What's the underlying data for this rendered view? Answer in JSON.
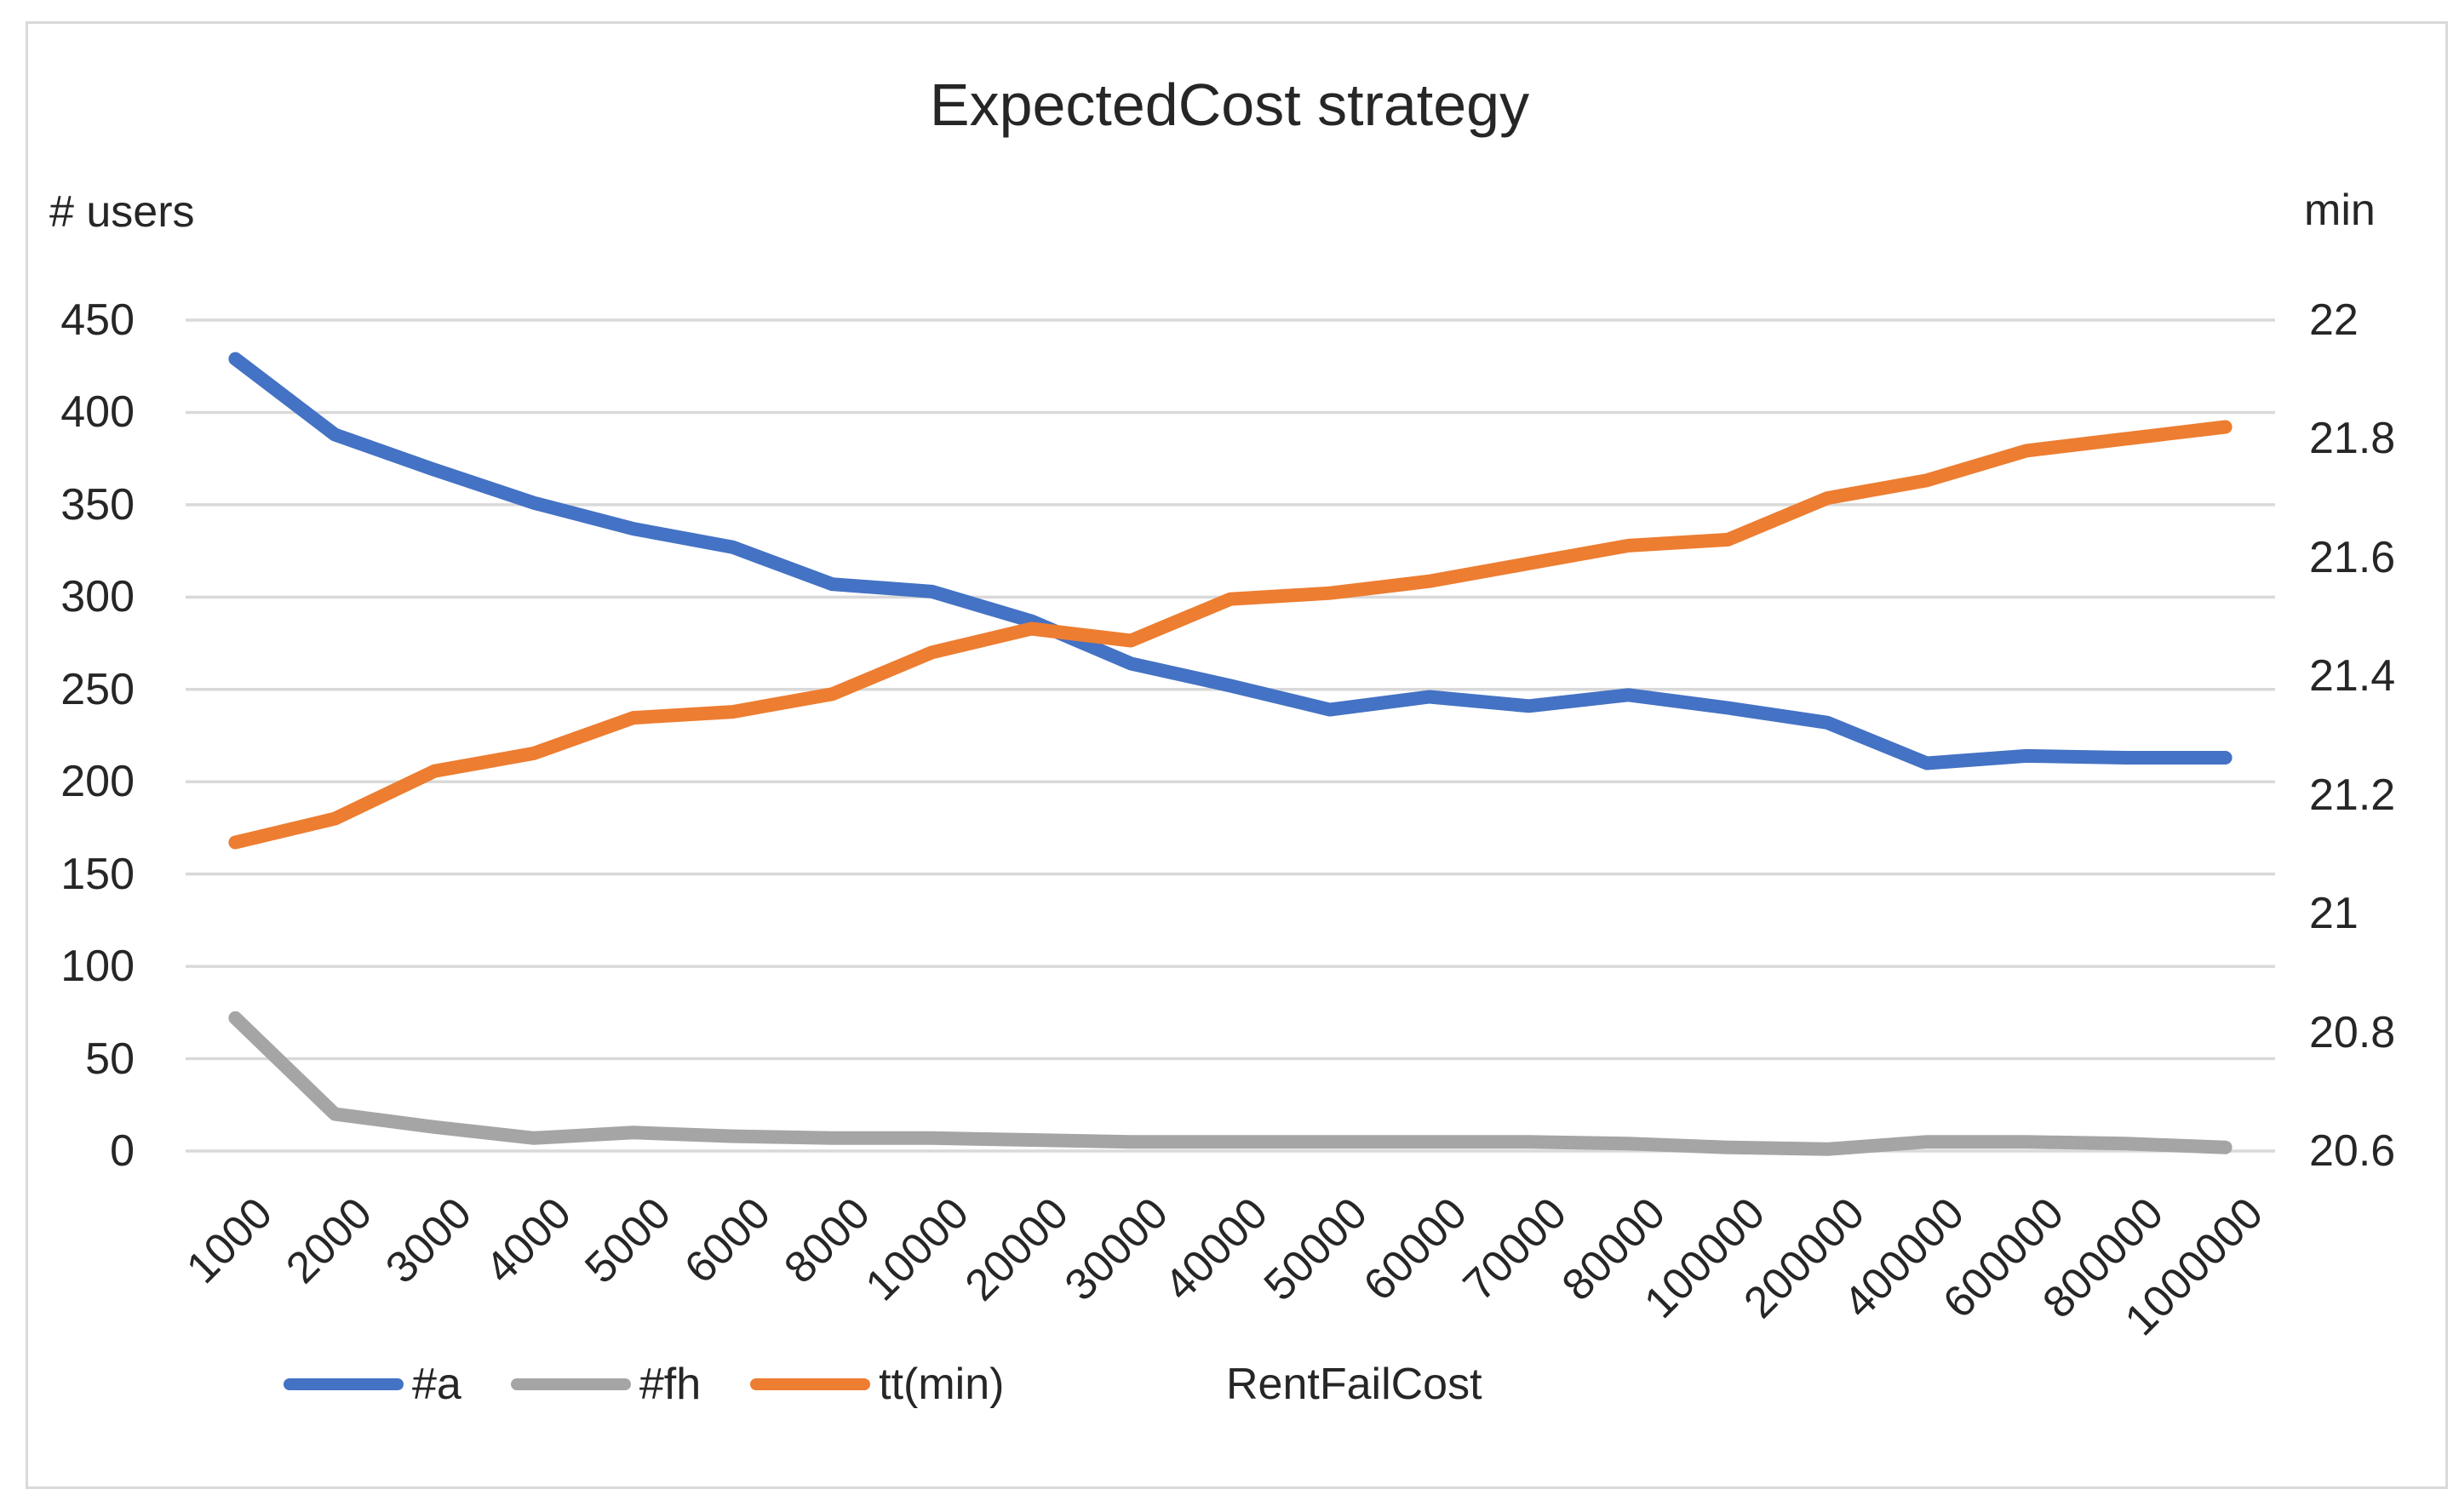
{
  "title": "ExpectedCost strategy",
  "left_axis_title": "# users",
  "right_axis_title": "min",
  "x_axis_title": "RentFailCost",
  "colors": {
    "series_a": "#4472C4",
    "series_fh": "#A5A5A5",
    "series_tt": "#ED7D31",
    "gridline": "#D9D9D9",
    "text": "#262626",
    "border": "#D9D9D9"
  },
  "chart_data": {
    "type": "line",
    "title": "ExpectedCost strategy",
    "xlabel": "RentFailCost",
    "grid": true,
    "legend_position": "bottom",
    "categories": [
      "1000",
      "2000",
      "3000",
      "4000",
      "5000",
      "6000",
      "8000",
      "10000",
      "20000",
      "30000",
      "40000",
      "50000",
      "60000",
      "70000",
      "80000",
      "100000",
      "200000",
      "400000",
      "600000",
      "800000",
      "1000000"
    ],
    "left_axis": {
      "title": "# users",
      "min": 0,
      "max": 450,
      "tick_labels": [
        "450",
        "400",
        "350",
        "300",
        "250",
        "200",
        "150",
        "100",
        "50",
        "0"
      ],
      "tick_values": [
        450,
        400,
        350,
        300,
        250,
        200,
        150,
        100,
        50,
        0
      ]
    },
    "right_axis": {
      "title": "min",
      "min": 20.6,
      "max": 22,
      "tick_labels": [
        "22",
        "21.8",
        "21.6",
        "21.4",
        "21.2",
        "21",
        "20.8",
        "20.6"
      ],
      "tick_values": [
        22,
        21.8,
        21.6,
        21.4,
        21.2,
        21,
        20.8,
        20.6
      ]
    },
    "series": [
      {
        "name": "#a",
        "axis": "left",
        "color": "#4472C4",
        "values": [
          429,
          388,
          369,
          351,
          337,
          327,
          307,
          303,
          287,
          264,
          252,
          239,
          246,
          241,
          247,
          240,
          232,
          210,
          214,
          213,
          213
        ]
      },
      {
        "name": "#fh",
        "axis": "left",
        "color": "#A5A5A5",
        "values": [
          72,
          20,
          13,
          7,
          10,
          8,
          7,
          7,
          6,
          5,
          5,
          5,
          5,
          5,
          4,
          2,
          1,
          5,
          5,
          4,
          2
        ]
      },
      {
        "name": "tt(min)",
        "axis": "right",
        "color": "#ED7D31",
        "values": [
          21.12,
          21.16,
          21.24,
          21.27,
          21.33,
          21.34,
          21.37,
          21.44,
          21.48,
          21.46,
          21.53,
          21.54,
          21.56,
          21.59,
          21.62,
          21.63,
          21.7,
          21.73,
          21.78,
          21.8,
          21.82
        ]
      }
    ],
    "legend": [
      {
        "label": "#a",
        "color": "#4472C4"
      },
      {
        "label": "#fh",
        "color": "#A5A5A5"
      },
      {
        "label": "tt(min)",
        "color": "#ED7D31"
      }
    ]
  }
}
